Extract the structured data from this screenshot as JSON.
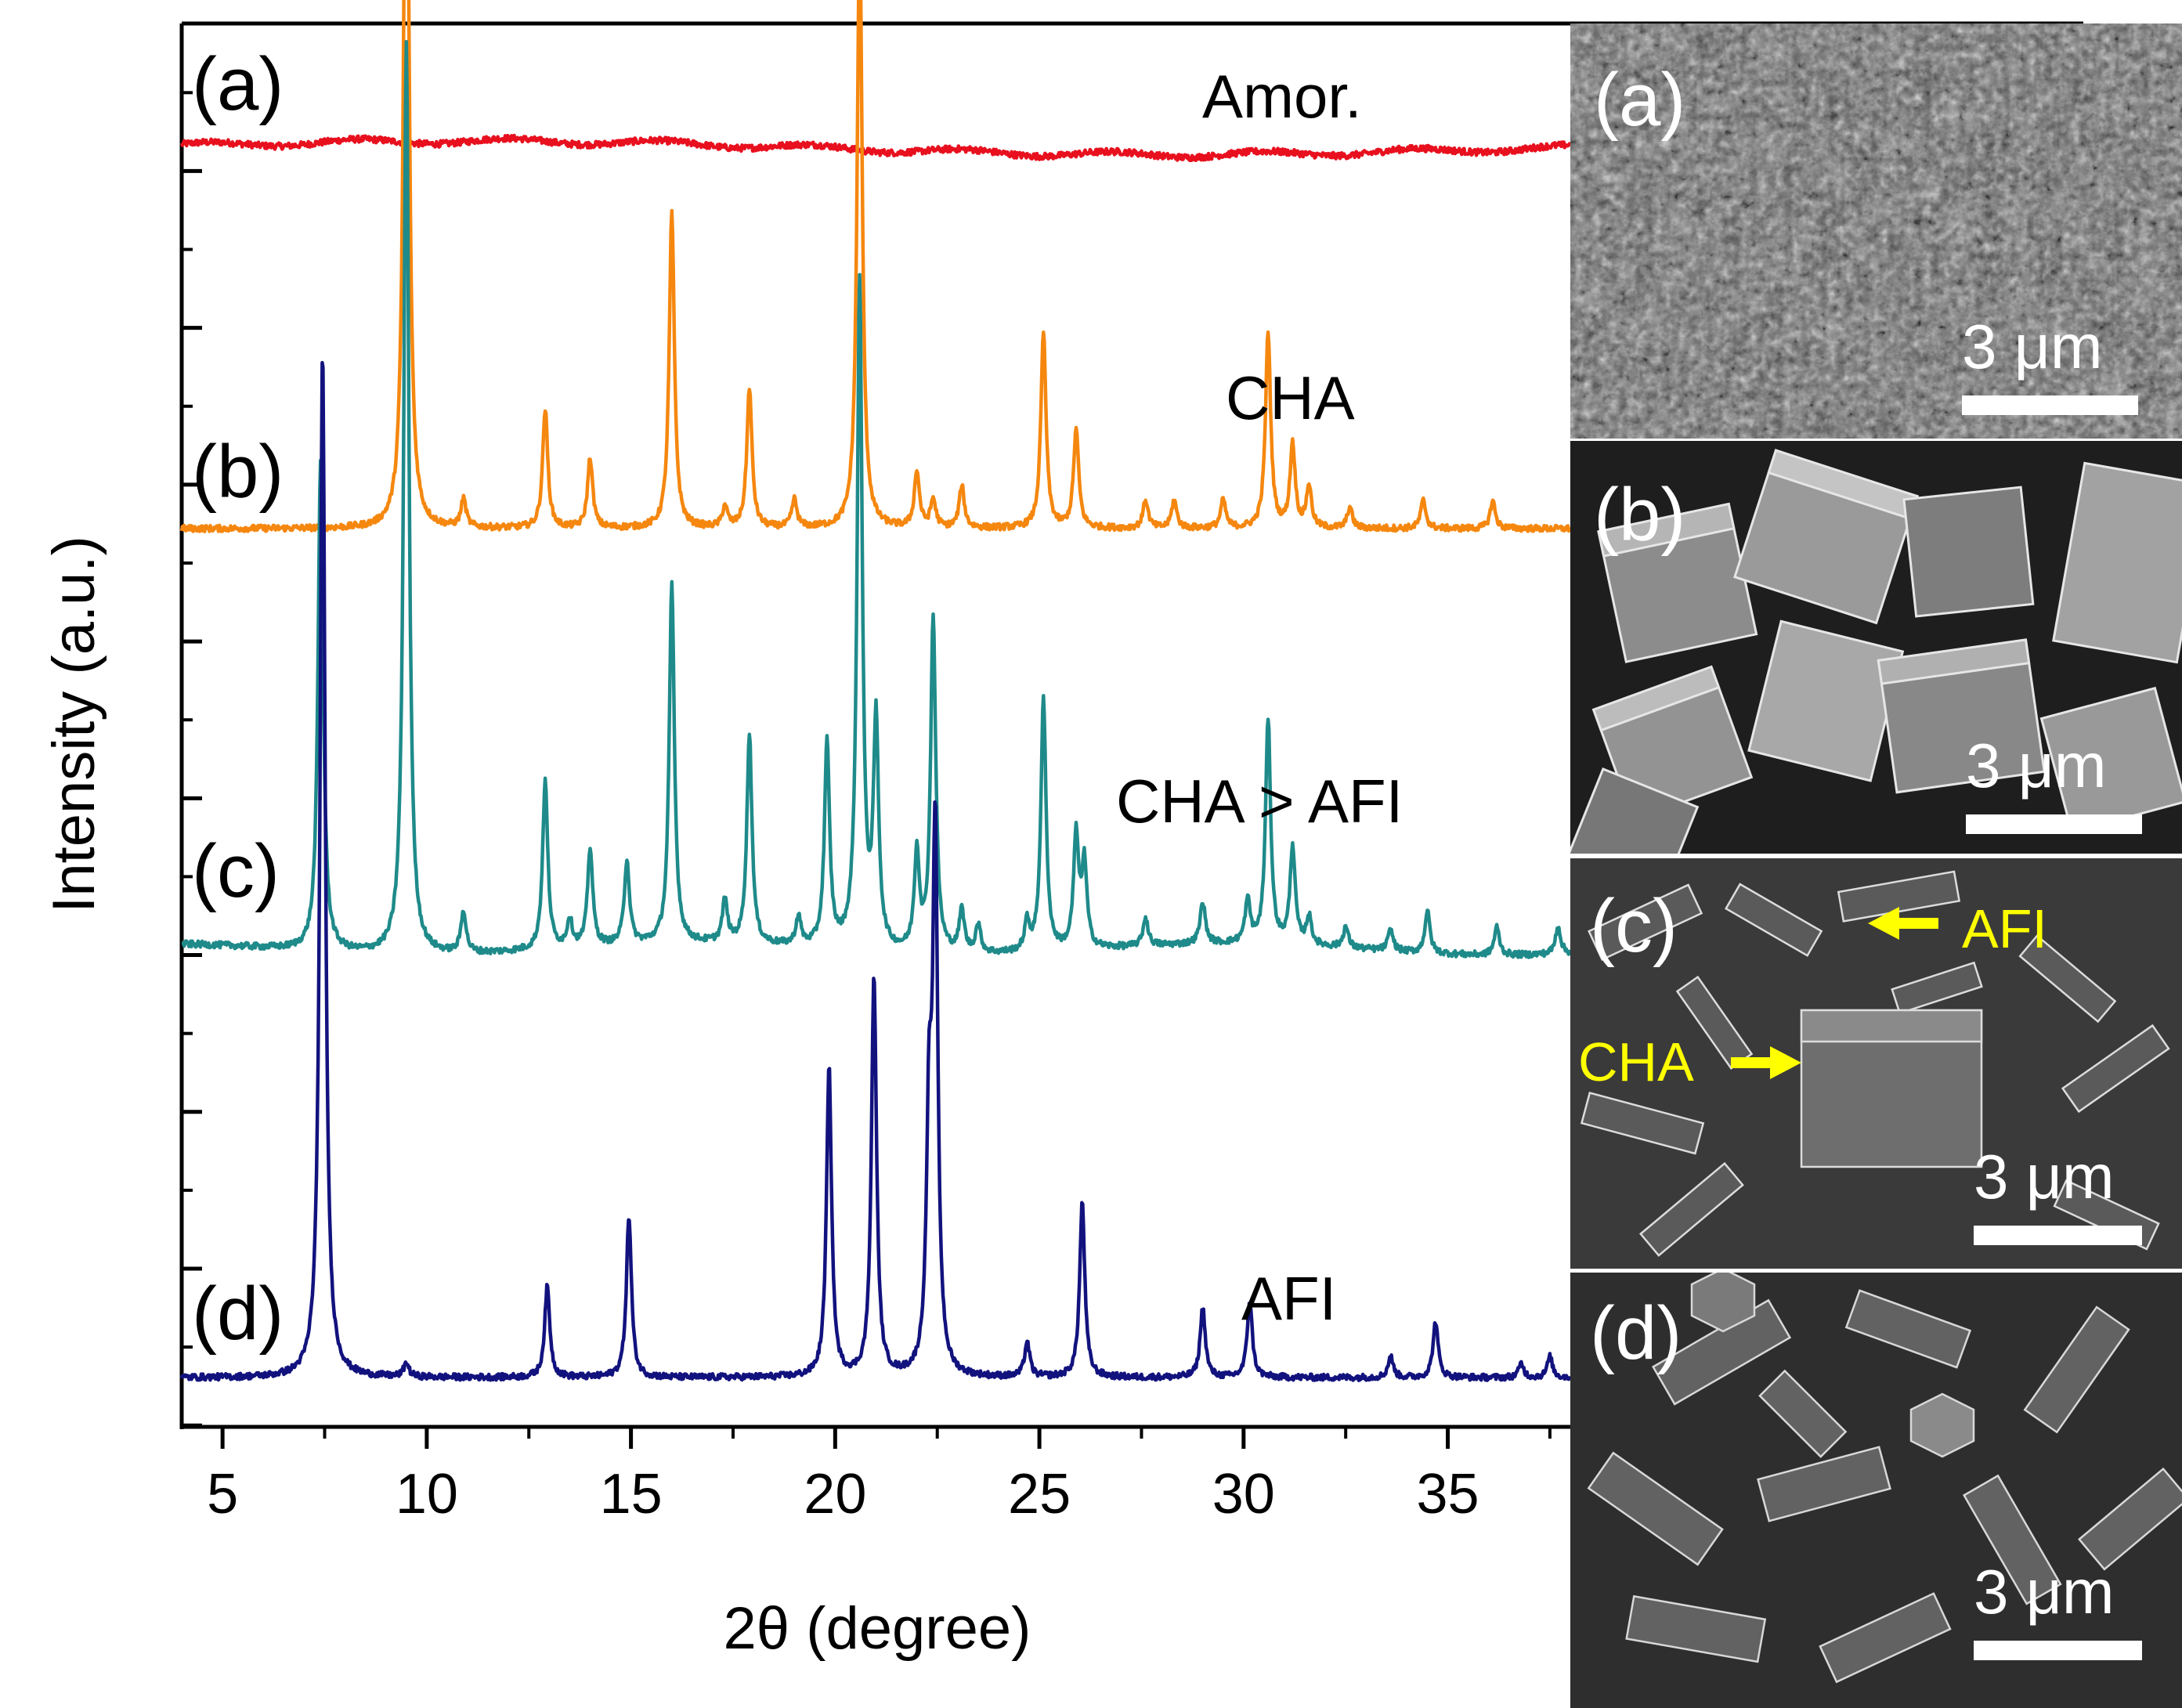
{
  "chart_data": {
    "type": "line",
    "title": "",
    "xlabel": "2θ (degree)",
    "ylabel": "Intensity (a.u.)",
    "xlim": [
      4,
      38
    ],
    "xticks": [
      "5",
      "10",
      "15",
      "20",
      "25",
      "30",
      "35"
    ],
    "grid": false,
    "series": [
      {
        "name": "(a)",
        "phase": "Amor.",
        "color": "#e8101e",
        "baseline": 0.913,
        "peaks": []
      },
      {
        "name": "(b)",
        "phase": "CHA",
        "color": "#f5870f",
        "baseline": 0.64,
        "peaks": [
          [
            9.5,
            0.63
          ],
          [
            10.9,
            0.02
          ],
          [
            12.9,
            0.085
          ],
          [
            14.0,
            0.05
          ],
          [
            16.0,
            0.225
          ],
          [
            17.3,
            0.015
          ],
          [
            17.9,
            0.1
          ],
          [
            19.0,
            0.02
          ],
          [
            20.6,
            0.43
          ],
          [
            22.0,
            0.04
          ],
          [
            22.4,
            0.02
          ],
          [
            23.1,
            0.03
          ],
          [
            25.1,
            0.14
          ],
          [
            25.9,
            0.07
          ],
          [
            27.6,
            0.02
          ],
          [
            28.3,
            0.02
          ],
          [
            29.5,
            0.02
          ],
          [
            30.6,
            0.14
          ],
          [
            31.2,
            0.06
          ],
          [
            31.6,
            0.03
          ],
          [
            32.6,
            0.015
          ],
          [
            34.4,
            0.02
          ],
          [
            36.1,
            0.02
          ]
        ]
      },
      {
        "name": "(c)",
        "phase": "CHA > AFI",
        "color": "#1f8a8a",
        "baseline": 0.34,
        "peaks": [
          [
            7.4,
            0.35
          ],
          [
            9.5,
            0.65
          ],
          [
            10.9,
            0.03
          ],
          [
            12.9,
            0.12
          ],
          [
            13.5,
            0.02
          ],
          [
            14.0,
            0.07
          ],
          [
            14.9,
            0.06
          ],
          [
            16.0,
            0.255
          ],
          [
            17.3,
            0.03
          ],
          [
            17.9,
            0.15
          ],
          [
            19.1,
            0.02
          ],
          [
            19.8,
            0.145
          ],
          [
            20.6,
            0.475
          ],
          [
            21.0,
            0.16
          ],
          [
            22.0,
            0.07
          ],
          [
            22.4,
            0.24
          ],
          [
            23.1,
            0.03
          ],
          [
            23.5,
            0.02
          ],
          [
            24.7,
            0.02
          ],
          [
            25.1,
            0.18
          ],
          [
            25.9,
            0.08
          ],
          [
            26.1,
            0.06
          ],
          [
            27.6,
            0.02
          ],
          [
            29.0,
            0.03
          ],
          [
            30.1,
            0.03
          ],
          [
            30.6,
            0.16
          ],
          [
            31.2,
            0.07
          ],
          [
            31.6,
            0.02
          ],
          [
            32.5,
            0.015
          ],
          [
            33.6,
            0.015
          ],
          [
            34.5,
            0.03
          ],
          [
            36.2,
            0.02
          ],
          [
            37.7,
            0.02
          ]
        ]
      },
      {
        "name": "(d)",
        "phase": "AFI",
        "color": "#12127e",
        "baseline": 0.035,
        "peaks": [
          [
            7.45,
            0.72
          ],
          [
            9.5,
            0.01
          ],
          [
            12.95,
            0.065
          ],
          [
            14.95,
            0.115
          ],
          [
            19.85,
            0.22
          ],
          [
            20.95,
            0.285
          ],
          [
            22.3,
            0.17
          ],
          [
            22.45,
            0.38
          ],
          [
            24.7,
            0.025
          ],
          [
            26.05,
            0.125
          ],
          [
            29.0,
            0.05
          ],
          [
            30.15,
            0.055
          ],
          [
            33.6,
            0.015
          ],
          [
            34.7,
            0.04
          ],
          [
            36.8,
            0.01
          ],
          [
            37.5,
            0.015
          ]
        ]
      }
    ],
    "annotations": {
      "panel_labels": [
        "(a)",
        "(b)",
        "(c)",
        "(d)"
      ]
    }
  },
  "sem_images": [
    {
      "label": "(a)",
      "scale_bar": "3 μm"
    },
    {
      "label": "(b)",
      "scale_bar": "3 μm"
    },
    {
      "label": "(c)",
      "scale_bar": "3 μm",
      "arrows": [
        "AFI",
        "CHA"
      ]
    },
    {
      "label": "(d)",
      "scale_bar": "3 μm"
    }
  ]
}
